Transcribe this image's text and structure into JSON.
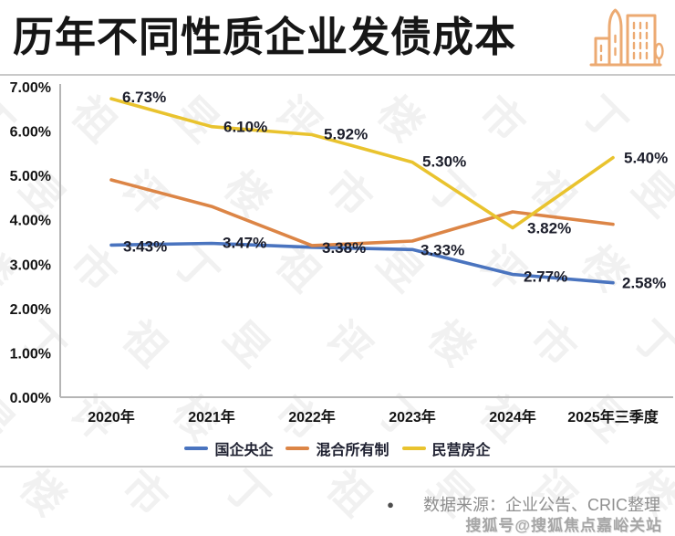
{
  "header": {
    "title": "历年不同性质企业发债成本",
    "icon": "buildings-icon"
  },
  "chart_data": {
    "type": "line",
    "title": "历年不同性质企业发债成本",
    "categories": [
      "2020年",
      "2021年",
      "2022年",
      "2023年",
      "2024年",
      "2025年三季度"
    ],
    "series": [
      {
        "name": "国企央企",
        "color": "#4a74bf",
        "values": [
          3.43,
          3.47,
          3.38,
          3.33,
          2.77,
          2.58
        ],
        "point_labels": [
          "3.43%",
          "3.47%",
          "3.38%",
          "3.33%",
          "2.77%",
          "2.58%"
        ]
      },
      {
        "name": "混合所有制",
        "color": "#dc8546",
        "values": [
          4.9,
          4.3,
          3.42,
          3.52,
          4.18,
          3.9
        ],
        "point_labels": [
          null,
          null,
          null,
          null,
          null,
          null
        ]
      },
      {
        "name": "民营房企",
        "color": "#e9c32e",
        "values": [
          6.73,
          6.1,
          5.92,
          5.3,
          3.82,
          5.4
        ],
        "point_labels": [
          "6.73%",
          "6.10%",
          "5.92%",
          "5.30%",
          "3.82%",
          "5.40%"
        ]
      }
    ],
    "ylim": [
      0,
      7
    ],
    "y_ticks": [
      "7.00%",
      "6.00%",
      "5.00%",
      "4.00%",
      "3.00%",
      "2.00%",
      "1.00%",
      "0.00%"
    ],
    "grid": false,
    "legend_position": "bottom"
  },
  "watermark": {
    "text": "丁祖昱评楼市"
  },
  "footer": {
    "bullet": "●",
    "source": "数据来源：企业公告、CRIC整理",
    "sohu": "搜狐号@搜狐焦点嘉峪关站"
  },
  "colors": {
    "axis": "#b5b5b5",
    "tick_text": "#141414",
    "data_label": "#1c1e2b",
    "divider": "#c9c9c9",
    "icon_stroke": "#ecaa72"
  }
}
